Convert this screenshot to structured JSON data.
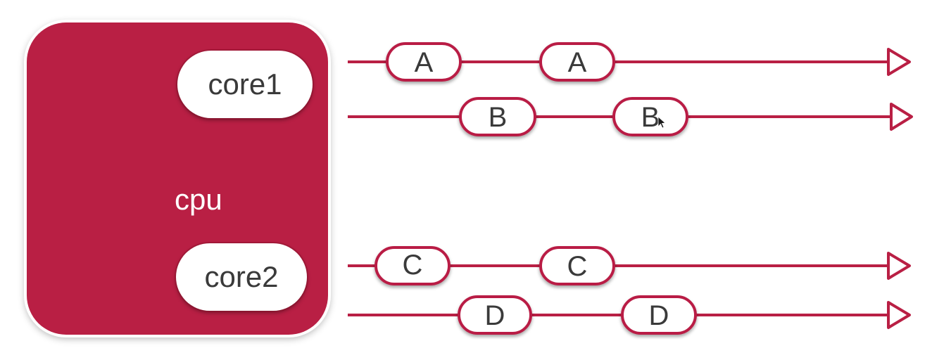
{
  "cpu": {
    "label": "cpu",
    "color": "#b91f44",
    "cores": [
      {
        "label": "core1"
      },
      {
        "label": "core2"
      }
    ]
  },
  "timelines": [
    {
      "core": "core1",
      "tasks": [
        "A",
        "A"
      ]
    },
    {
      "core": "core1",
      "tasks": [
        "B",
        "B"
      ]
    },
    {
      "core": "core2",
      "tasks": [
        "C",
        "C"
      ]
    },
    {
      "core": "core2",
      "tasks": [
        "D",
        "D"
      ]
    }
  ],
  "line_color": "#b91f44"
}
